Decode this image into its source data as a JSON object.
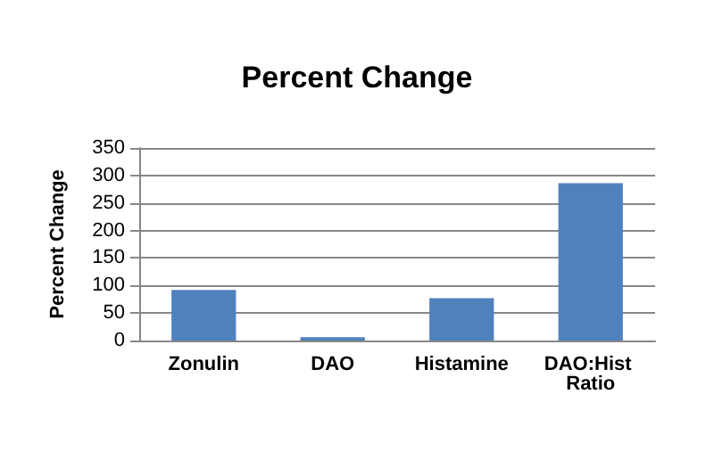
{
  "chart_data": {
    "type": "bar",
    "title": "Percent Change",
    "ylabel": "Percent Change",
    "categories": [
      "Zonulin",
      "DAO",
      "Histamine",
      "DAO:Hist Ratio"
    ],
    "values": [
      92,
      6,
      77,
      286
    ],
    "color": "#4f81bd",
    "ylim": [
      0,
      350
    ],
    "yticks": [
      0,
      50,
      100,
      150,
      200,
      250,
      300,
      350
    ],
    "grid": "y"
  }
}
